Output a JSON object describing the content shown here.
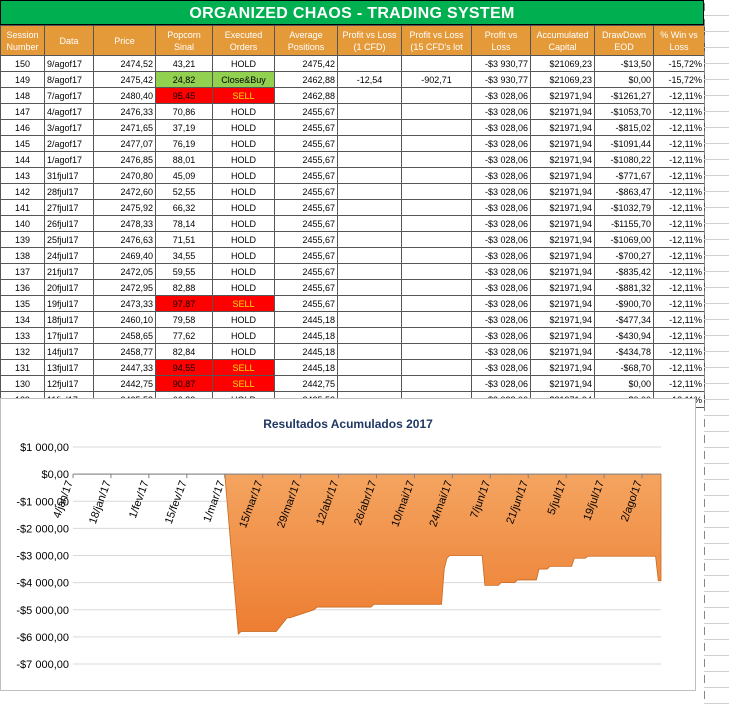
{
  "title": "ORGANIZED CHAOS - TRADING SYSTEM",
  "headers": [
    "Session Number",
    "Data",
    "Price",
    "Popcorn Sinal",
    "Executed Orders",
    "Average Positions",
    "Profit vs Loss (1 CFD)",
    "Profit vs Loss (15 CFD's lot",
    "Profit vs Loss",
    "Accumulated Capital",
    "DrawDown EOD",
    "% Win vs Loss"
  ],
  "rows": [
    {
      "session": "150",
      "date": "9/agof17",
      "price": "2474,52",
      "popcorn": "43,21",
      "popcorn_color": "",
      "order": "HOLD",
      "order_color": "",
      "avg": "2475,42",
      "pl1": "",
      "pl15": "",
      "pl": "-$3 930,77",
      "capital": "$21069,23",
      "dd": "-$13,50",
      "win": "-15,72%"
    },
    {
      "session": "149",
      "date": "8/agof17",
      "price": "2475,42",
      "popcorn": "24,82",
      "popcorn_color": "green",
      "order": "Close&Buy",
      "order_color": "green",
      "avg": "2462,88",
      "pl1": "-12,54",
      "pl15": "-902,71",
      "pl": "-$3 930,77",
      "capital": "$21069,23",
      "dd": "$0,00",
      "win": "-15,72%"
    },
    {
      "session": "148",
      "date": "7/agof17",
      "price": "2480,40",
      "popcorn": "95,45",
      "popcorn_color": "red",
      "order": "SELL",
      "order_color": "red",
      "avg": "2462,88",
      "pl1": "",
      "pl15": "",
      "pl": "-$3 028,06",
      "capital": "$21971,94",
      "dd": "-$1261,27",
      "win": "-12,11%"
    },
    {
      "session": "147",
      "date": "4/agof17",
      "price": "2476,33",
      "popcorn": "70,86",
      "popcorn_color": "",
      "order": "HOLD",
      "order_color": "",
      "avg": "2455,67",
      "pl1": "",
      "pl15": "",
      "pl": "-$3 028,06",
      "capital": "$21971,94",
      "dd": "-$1053,70",
      "win": "-12,11%"
    },
    {
      "session": "146",
      "date": "3/agof17",
      "price": "2471,65",
      "popcorn": "37,19",
      "popcorn_color": "",
      "order": "HOLD",
      "order_color": "",
      "avg": "2455,67",
      "pl1": "",
      "pl15": "",
      "pl": "-$3 028,06",
      "capital": "$21971,94",
      "dd": "-$815,02",
      "win": "-12,11%"
    },
    {
      "session": "145",
      "date": "2/agof17",
      "price": "2477,07",
      "popcorn": "76,19",
      "popcorn_color": "",
      "order": "HOLD",
      "order_color": "",
      "avg": "2455,67",
      "pl1": "",
      "pl15": "",
      "pl": "-$3 028,06",
      "capital": "$21971,94",
      "dd": "-$1091,44",
      "win": "-12,11%"
    },
    {
      "session": "144",
      "date": "1/agof17",
      "price": "2476,85",
      "popcorn": "88,01",
      "popcorn_color": "",
      "order": "HOLD",
      "order_color": "",
      "avg": "2455,67",
      "pl1": "",
      "pl15": "",
      "pl": "-$3 028,06",
      "capital": "$21971,94",
      "dd": "-$1080,22",
      "win": "-12,11%"
    },
    {
      "session": "143",
      "date": "31fjul17",
      "price": "2470,80",
      "popcorn": "45,09",
      "popcorn_color": "",
      "order": "HOLD",
      "order_color": "",
      "avg": "2455,67",
      "pl1": "",
      "pl15": "",
      "pl": "-$3 028,06",
      "capital": "$21971,94",
      "dd": "-$771,67",
      "win": "-12,11%"
    },
    {
      "session": "142",
      "date": "28fjul17",
      "price": "2472,60",
      "popcorn": "52,55",
      "popcorn_color": "",
      "order": "HOLD",
      "order_color": "",
      "avg": "2455,67",
      "pl1": "",
      "pl15": "",
      "pl": "-$3 028,06",
      "capital": "$21971,94",
      "dd": "-$863,47",
      "win": "-12,11%"
    },
    {
      "session": "141",
      "date": "27fjul17",
      "price": "2475,92",
      "popcorn": "66,32",
      "popcorn_color": "",
      "order": "HOLD",
      "order_color": "",
      "avg": "2455,67",
      "pl1": "",
      "pl15": "",
      "pl": "-$3 028,06",
      "capital": "$21971,94",
      "dd": "-$1032,79",
      "win": "-12,11%"
    },
    {
      "session": "140",
      "date": "26fjul17",
      "price": "2478,33",
      "popcorn": "78,14",
      "popcorn_color": "",
      "order": "HOLD",
      "order_color": "",
      "avg": "2455,67",
      "pl1": "",
      "pl15": "",
      "pl": "-$3 028,06",
      "capital": "$21971,94",
      "dd": "-$1155,70",
      "win": "-12,11%"
    },
    {
      "session": "139",
      "date": "25fjul17",
      "price": "2476,63",
      "popcorn": "71,51",
      "popcorn_color": "",
      "order": "HOLD",
      "order_color": "",
      "avg": "2455,67",
      "pl1": "",
      "pl15": "",
      "pl": "-$3 028,06",
      "capital": "$21971,94",
      "dd": "-$1069,00",
      "win": "-12,11%"
    },
    {
      "session": "138",
      "date": "24fjul17",
      "price": "2469,40",
      "popcorn": "34,55",
      "popcorn_color": "",
      "order": "HOLD",
      "order_color": "",
      "avg": "2455,67",
      "pl1": "",
      "pl15": "",
      "pl": "-$3 028,06",
      "capital": "$21971,94",
      "dd": "-$700,27",
      "win": "-12,11%"
    },
    {
      "session": "137",
      "date": "21fjul17",
      "price": "2472,05",
      "popcorn": "59,55",
      "popcorn_color": "",
      "order": "HOLD",
      "order_color": "",
      "avg": "2455,67",
      "pl1": "",
      "pl15": "",
      "pl": "-$3 028,06",
      "capital": "$21971,94",
      "dd": "-$835,42",
      "win": "-12,11%"
    },
    {
      "session": "136",
      "date": "20fjul17",
      "price": "2472,95",
      "popcorn": "82,88",
      "popcorn_color": "",
      "order": "HOLD",
      "order_color": "",
      "avg": "2455,67",
      "pl1": "",
      "pl15": "",
      "pl": "-$3 028,06",
      "capital": "$21971,94",
      "dd": "-$881,32",
      "win": "-12,11%"
    },
    {
      "session": "135",
      "date": "19fjul17",
      "price": "2473,33",
      "popcorn": "97,87",
      "popcorn_color": "red",
      "order": "SELL",
      "order_color": "red",
      "avg": "2455,67",
      "pl1": "",
      "pl15": "",
      "pl": "-$3 028,06",
      "capital": "$21971,94",
      "dd": "-$900,70",
      "win": "-12,11%"
    },
    {
      "session": "134",
      "date": "18fjul17",
      "price": "2460,10",
      "popcorn": "79,58",
      "popcorn_color": "",
      "order": "HOLD",
      "order_color": "",
      "avg": "2445,18",
      "pl1": "",
      "pl15": "",
      "pl": "-$3 028,06",
      "capital": "$21971,94",
      "dd": "-$477,34",
      "win": "-12,11%"
    },
    {
      "session": "133",
      "date": "17fjul17",
      "price": "2458,65",
      "popcorn": "77,62",
      "popcorn_color": "",
      "order": "HOLD",
      "order_color": "",
      "avg": "2445,18",
      "pl1": "",
      "pl15": "",
      "pl": "-$3 028,06",
      "capital": "$21971,94",
      "dd": "-$430,94",
      "win": "-12,11%"
    },
    {
      "session": "132",
      "date": "14fjul17",
      "price": "2458,77",
      "popcorn": "82,84",
      "popcorn_color": "",
      "order": "HOLD",
      "order_color": "",
      "avg": "2445,18",
      "pl1": "",
      "pl15": "",
      "pl": "-$3 028,06",
      "capital": "$21971,94",
      "dd": "-$434,78",
      "win": "-12,11%"
    },
    {
      "session": "131",
      "date": "13fjul17",
      "price": "2447,33",
      "popcorn": "94,55",
      "popcorn_color": "red",
      "order": "SELL",
      "order_color": "red",
      "avg": "2445,18",
      "pl1": "",
      "pl15": "",
      "pl": "-$3 028,06",
      "capital": "$21971,94",
      "dd": "-$68,70",
      "win": "-12,11%"
    },
    {
      "session": "130",
      "date": "12fjul17",
      "price": "2442,75",
      "popcorn": "90,87",
      "popcorn_color": "red",
      "order": "SELL",
      "order_color": "red",
      "avg": "2442,75",
      "pl1": "",
      "pl15": "",
      "pl": "-$3 028,06",
      "capital": "$21971,94",
      "dd": "$0,00",
      "win": "-12,11%"
    },
    {
      "session": "129",
      "date": "11fjul17",
      "price": "2425,53",
      "popcorn": "66,32",
      "popcorn_color": "",
      "order": "HOLD",
      "order_color": "",
      "avg": "2425,53",
      "pl1": "",
      "pl15": "",
      "pl": "-$3 028,06",
      "capital": "$21971,94",
      "dd": "$0,00",
      "win": "-12,11%"
    }
  ],
  "chart_data": {
    "type": "area",
    "title": "Resultados Acumulados 2017",
    "xlabel": "",
    "ylabel": "",
    "ylim": [
      -7000,
      1000
    ],
    "y_ticks": [
      1000,
      0,
      -1000,
      -2000,
      -3000,
      -4000,
      -5000,
      -6000,
      -7000
    ],
    "y_tick_labels": [
      "$1 000,00",
      "$0,00",
      "-$1 000,00",
      "-$2 000,00",
      "-$3 000,00",
      "-$4 000,00",
      "-$5 000,00",
      "-$6 000,00",
      "-$7 000,00"
    ],
    "x_tick_labels": [
      "4/jan/17",
      "18/jan/17",
      "1/fev/17",
      "15/fev/17",
      "1/mar/17",
      "15/mar/17",
      "29/mar/17",
      "12/abr/17",
      "26/abr/17",
      "10/mai/17",
      "24/mai/17",
      "7/jun/17",
      "21/jun/17",
      "5/jul/17",
      "19/jul/17",
      "2/ago/17"
    ],
    "x_ticks": [
      "2017-01-04",
      "2017-01-18",
      "2017-02-01",
      "2017-02-15",
      "2017-03-01",
      "2017-03-15",
      "2017-03-29",
      "2017-04-12",
      "2017-04-26",
      "2017-05-10",
      "2017-05-24",
      "2017-06-07",
      "2017-06-21",
      "2017-07-05",
      "2017-07-19",
      "2017-08-02"
    ],
    "xlim": [
      "2017-01-04",
      "2017-08-09"
    ],
    "grid": true,
    "legend": "none",
    "color": "#ed7d31",
    "series": [
      {
        "x": [
          "2017-01-06",
          "2017-01-20",
          "2017-02-10",
          "2017-03-01",
          "2017-03-06",
          "2017-03-07",
          "2017-03-09",
          "2017-03-10",
          "2017-03-20",
          "2017-03-24",
          "2017-03-25",
          "2017-04-03",
          "2017-04-04",
          "2017-04-07",
          "2017-04-08",
          "2017-04-24",
          "2017-04-25",
          "2017-04-28",
          "2017-04-29",
          "2017-05-20",
          "2017-05-21",
          "2017-05-22",
          "2017-05-23",
          "2017-06-04",
          "2017-06-05",
          "2017-06-10",
          "2017-06-11",
          "2017-06-16",
          "2017-06-17",
          "2017-06-24",
          "2017-06-25",
          "2017-06-28",
          "2017-06-29",
          "2017-07-07",
          "2017-07-08",
          "2017-07-12",
          "2017-07-13",
          "2017-08-07",
          "2017-08-08",
          "2017-08-09"
        ],
        "y": [
          0,
          0,
          0,
          0,
          -5900,
          -5800,
          -5800,
          -5800,
          -5800,
          -5300,
          -5300,
          -5000,
          -4900,
          -4900,
          -4900,
          -4900,
          -4800,
          -4800,
          -4800,
          -4800,
          -3500,
          -3100,
          -3000,
          -3000,
          -4100,
          -4100,
          -4000,
          -4000,
          -3900,
          -3900,
          -3500,
          -3500,
          -3400,
          -3400,
          -3100,
          -3100,
          -3028,
          -3028,
          -3930,
          -3930
        ]
      }
    ]
  }
}
